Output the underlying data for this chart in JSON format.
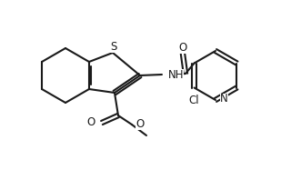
{
  "bg": "#ffffff",
  "lc": "#1a1a1a",
  "lw": 1.5,
  "fs": 8.5,
  "figsize": [
    3.2,
    1.98
  ],
  "dpi": 100,
  "xlim": [
    0.0,
    3.2
  ],
  "ylim": [
    0.0,
    1.98
  ]
}
